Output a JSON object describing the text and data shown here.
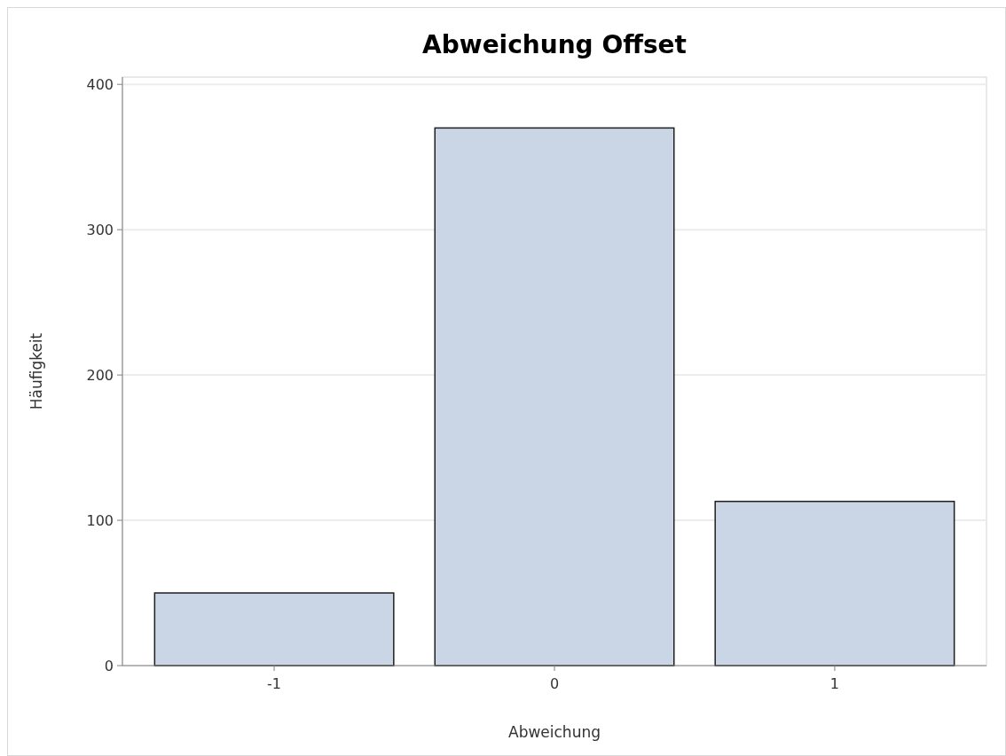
{
  "chart_data": {
    "type": "bar",
    "title": "Abweichung Offset",
    "xlabel": "Abweichung",
    "ylabel": "Häufigkeit",
    "categories": [
      "-1",
      "0",
      "1"
    ],
    "values": [
      50,
      370,
      113
    ],
    "color": "#cad5e5",
    "ylim": [
      0,
      405
    ],
    "yticks": [
      0,
      100,
      200,
      300,
      400
    ],
    "grid": "y"
  }
}
